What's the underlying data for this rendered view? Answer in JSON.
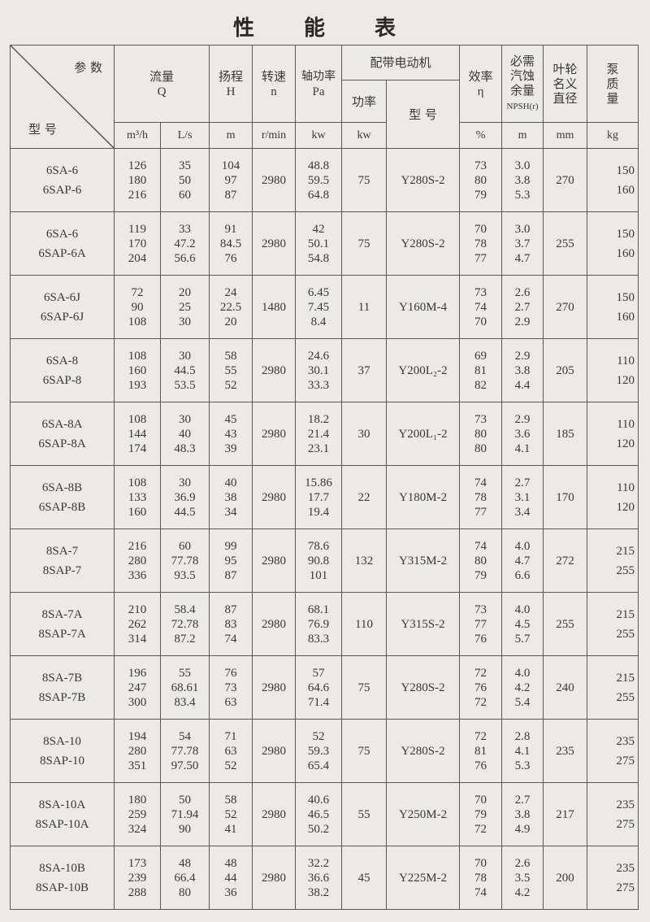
{
  "title": "性 能 表",
  "header": {
    "params": "参 数",
    "model": "型 号",
    "flow": "流量",
    "flow_sym": "Q",
    "head": "扬程",
    "head_sym": "H",
    "speed": "转速",
    "speed_sym": "n",
    "shaft_power": "轴功率",
    "shaft_power_sym": "Pa",
    "motor": "配带电动机",
    "motor_power": "功率",
    "motor_model": "型 号",
    "efficiency": "效率",
    "efficiency_sym": "η",
    "npsh": "必需汽蚀余量",
    "npsh_sym": "NPSH(r)",
    "impeller": "叶轮名义直径",
    "mass": "泵质量",
    "units": {
      "flow_m3h": "m³/h",
      "flow_ls": "L/s",
      "head": "m",
      "speed": "r/min",
      "shaft_power": "kw",
      "motor_power": "kw",
      "efficiency": "%",
      "npsh": "m",
      "impeller": "mm",
      "mass": "kg"
    }
  },
  "rows": [
    {
      "models": [
        "6SA-6",
        "6SAP-6"
      ],
      "m3h": [
        "126",
        "180",
        "216"
      ],
      "ls": [
        "35",
        "50",
        "60"
      ],
      "h": [
        "104",
        "97",
        "87"
      ],
      "n": "2980",
      "pa": [
        "48.8",
        "59.5",
        "64.8"
      ],
      "kw": "75",
      "motor": "Y280S-2",
      "eff": [
        "73",
        "80",
        "79"
      ],
      "npsh": [
        "3.0",
        "3.8",
        "5.3"
      ],
      "d": "270",
      "mass": [
        "150",
        "160"
      ]
    },
    {
      "models": [
        "6SA-6",
        "6SAP-6A"
      ],
      "m3h": [
        "119",
        "170",
        "204"
      ],
      "ls": [
        "33",
        "47.2",
        "56.6"
      ],
      "h": [
        "91",
        "84.5",
        "76"
      ],
      "n": "2980",
      "pa": [
        "42",
        "50.1",
        "54.8"
      ],
      "kw": "75",
      "motor": "Y280S-2",
      "eff": [
        "70",
        "78",
        "77"
      ],
      "npsh": [
        "3.0",
        "3.7",
        "4.7"
      ],
      "d": "255",
      "mass": [
        "150",
        "160"
      ]
    },
    {
      "models": [
        "6SA-6J",
        "6SAP-6J"
      ],
      "m3h": [
        "72",
        "90",
        "108"
      ],
      "ls": [
        "20",
        "25",
        "30"
      ],
      "h": [
        "24",
        "22.5",
        "20"
      ],
      "n": "1480",
      "pa": [
        "6.45",
        "7.45",
        "8.4"
      ],
      "kw": "11",
      "motor": "Y160M-4",
      "eff": [
        "73",
        "74",
        "70"
      ],
      "npsh": [
        "2.6",
        "2.7",
        "2.9"
      ],
      "d": "270",
      "mass": [
        "150",
        "160"
      ]
    },
    {
      "models": [
        "6SA-8",
        "6SAP-8"
      ],
      "m3h": [
        "108",
        "160",
        "193"
      ],
      "ls": [
        "30",
        "44.5",
        "53.5"
      ],
      "h": [
        "58",
        "55",
        "52"
      ],
      "n": "2980",
      "pa": [
        "24.6",
        "30.1",
        "33.3"
      ],
      "kw": "37",
      "motor": "Y200L₂-2",
      "eff": [
        "69",
        "81",
        "82"
      ],
      "npsh": [
        "2.9",
        "3.8",
        "4.4"
      ],
      "d": "205",
      "mass": [
        "110",
        "120"
      ]
    },
    {
      "models": [
        "6SA-8A",
        "6SAP-8A"
      ],
      "m3h": [
        "108",
        "144",
        "174"
      ],
      "ls": [
        "30",
        "40",
        "48.3"
      ],
      "h": [
        "45",
        "43",
        "39"
      ],
      "n": "2980",
      "pa": [
        "18.2",
        "21.4",
        "23.1"
      ],
      "kw": "30",
      "motor": "Y200L₁-2",
      "eff": [
        "73",
        "80",
        "80"
      ],
      "npsh": [
        "2.9",
        "3.6",
        "4.1"
      ],
      "d": "185",
      "mass": [
        "110",
        "120"
      ]
    },
    {
      "models": [
        "6SA-8B",
        "6SAP-8B"
      ],
      "m3h": [
        "108",
        "133",
        "160"
      ],
      "ls": [
        "30",
        "36.9",
        "44.5"
      ],
      "h": [
        "40",
        "38",
        "34"
      ],
      "n": "2980",
      "pa": [
        "15.86",
        "17.7",
        "19.4"
      ],
      "kw": "22",
      "motor": "Y180M-2",
      "eff": [
        "74",
        "78",
        "77"
      ],
      "npsh": [
        "2.7",
        "3.1",
        "3.4"
      ],
      "d": "170",
      "mass": [
        "110",
        "120"
      ]
    },
    {
      "models": [
        "8SA-7",
        "8SAP-7"
      ],
      "m3h": [
        "216",
        "280",
        "336"
      ],
      "ls": [
        "60",
        "77.78",
        "93.5"
      ],
      "h": [
        "99",
        "95",
        "87"
      ],
      "n": "2980",
      "pa": [
        "78.6",
        "90.8",
        "101"
      ],
      "kw": "132",
      "motor": "Y315M-2",
      "eff": [
        "74",
        "80",
        "79"
      ],
      "npsh": [
        "4.0",
        "4.7",
        "6.6"
      ],
      "d": "272",
      "mass": [
        "215",
        "255"
      ]
    },
    {
      "models": [
        "8SA-7A",
        "8SAP-7A"
      ],
      "m3h": [
        "210",
        "262",
        "314"
      ],
      "ls": [
        "58.4",
        "72.78",
        "87.2"
      ],
      "h": [
        "87",
        "83",
        "74"
      ],
      "n": "2980",
      "pa": [
        "68.1",
        "76.9",
        "83.3"
      ],
      "kw": "110",
      "motor": "Y315S-2",
      "eff": [
        "73",
        "77",
        "76"
      ],
      "npsh": [
        "4.0",
        "4.5",
        "5.7"
      ],
      "d": "255",
      "mass": [
        "215",
        "255"
      ]
    },
    {
      "models": [
        "8SA-7B",
        "8SAP-7B"
      ],
      "m3h": [
        "196",
        "247",
        "300"
      ],
      "ls": [
        "55",
        "68.61",
        "83.4"
      ],
      "h": [
        "76",
        "73",
        "63"
      ],
      "n": "2980",
      "pa": [
        "57",
        "64.6",
        "71.4"
      ],
      "kw": "75",
      "motor": "Y280S-2",
      "eff": [
        "72",
        "76",
        "72"
      ],
      "npsh": [
        "4.0",
        "4.2",
        "5.4"
      ],
      "d": "240",
      "mass": [
        "215",
        "255"
      ]
    },
    {
      "models": [
        "8SA-10",
        "8SAP-10"
      ],
      "m3h": [
        "194",
        "280",
        "351"
      ],
      "ls": [
        "54",
        "77.78",
        "97.50"
      ],
      "h": [
        "71",
        "63",
        "52"
      ],
      "n": "2980",
      "pa": [
        "52",
        "59.3",
        "65.4"
      ],
      "kw": "75",
      "motor": "Y280S-2",
      "eff": [
        "72",
        "81",
        "76"
      ],
      "npsh": [
        "2.8",
        "4.1",
        "5.3"
      ],
      "d": "235",
      "mass": [
        "235",
        "275"
      ]
    },
    {
      "models": [
        "8SA-10A",
        "8SAP-10A"
      ],
      "m3h": [
        "180",
        "259",
        "324"
      ],
      "ls": [
        "50",
        "71.94",
        "90"
      ],
      "h": [
        "58",
        "52",
        "41"
      ],
      "n": "2980",
      "pa": [
        "40.6",
        "46.5",
        "50.2"
      ],
      "kw": "55",
      "motor": "Y250M-2",
      "eff": [
        "70",
        "79",
        "72"
      ],
      "npsh": [
        "2.7",
        "3.8",
        "4.9"
      ],
      "d": "217",
      "mass": [
        "235",
        "275"
      ]
    },
    {
      "models": [
        "8SA-10B",
        "8SAP-10B"
      ],
      "m3h": [
        "173",
        "239",
        "288"
      ],
      "ls": [
        "48",
        "66.4",
        "80"
      ],
      "h": [
        "48",
        "44",
        "36"
      ],
      "n": "2980",
      "pa": [
        "32.2",
        "36.6",
        "38.2"
      ],
      "kw": "45",
      "motor": "Y225M-2",
      "eff": [
        "70",
        "78",
        "74"
      ],
      "npsh": [
        "2.6",
        "3.5",
        "4.2"
      ],
      "d": "200",
      "mass": [
        "235",
        "275"
      ]
    }
  ]
}
